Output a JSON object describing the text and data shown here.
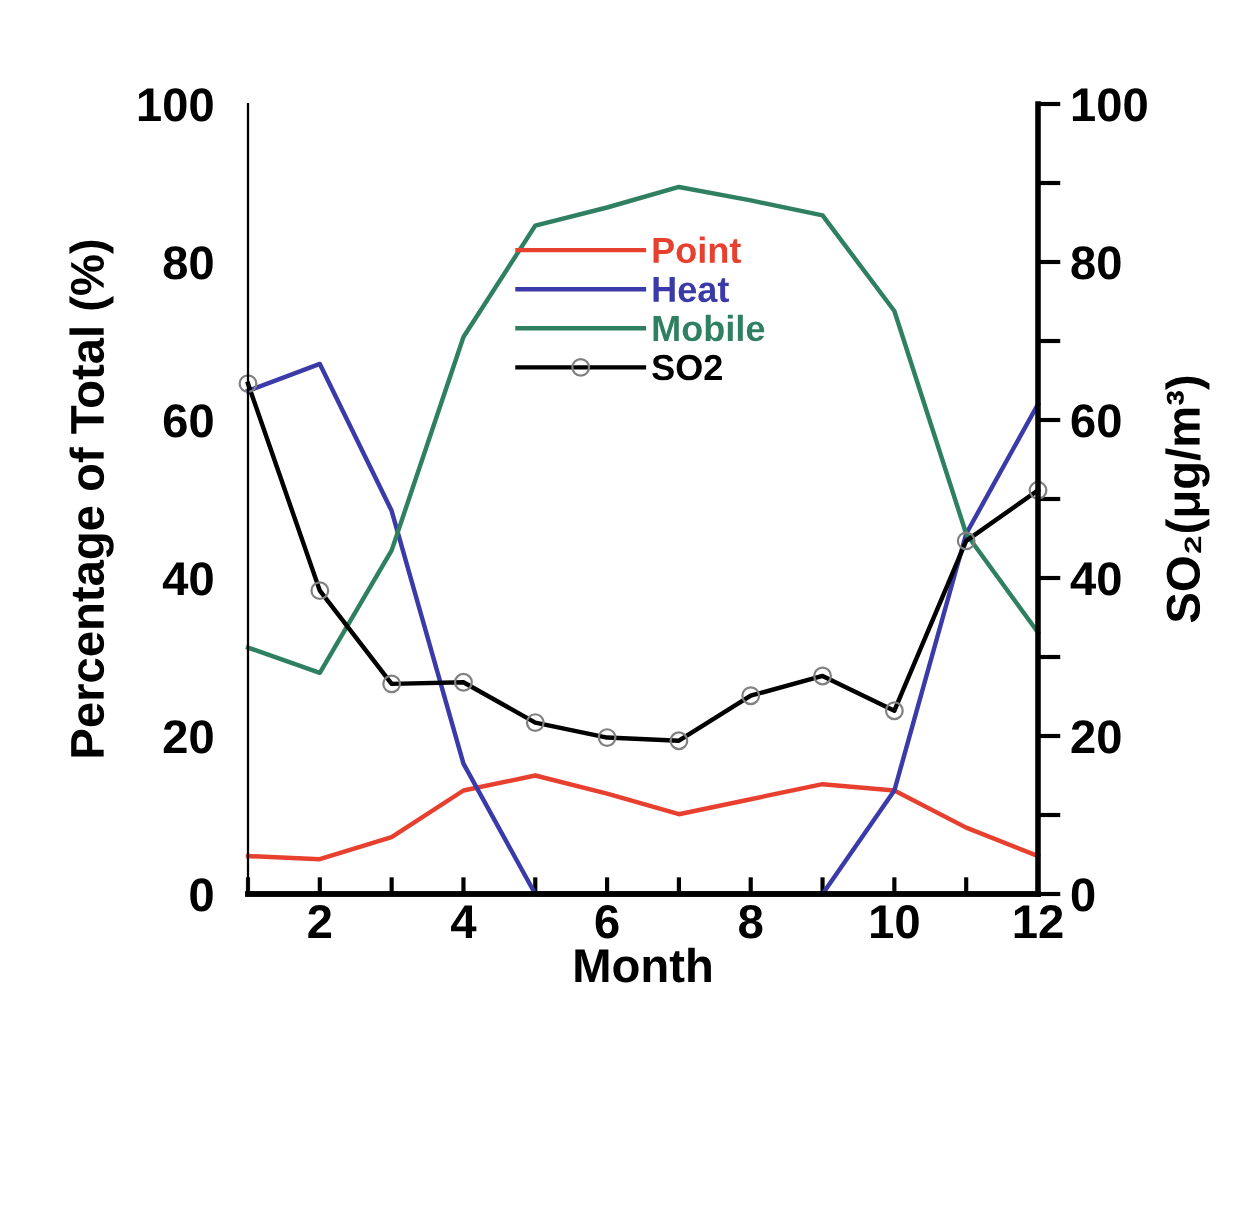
{
  "chart_data": {
    "type": "line",
    "xlabel": "Month",
    "ylabel": "Percentage of Total (%)",
    "y2label": "SO₂(μg/m³)",
    "x": [
      1,
      2,
      3,
      4,
      5,
      6,
      7,
      8,
      9,
      10,
      11,
      12
    ],
    "series": [
      {
        "name": "Point",
        "color": "#e8402f",
        "values": [
          4.8,
          4.4,
          7.2,
          13.1,
          15.0,
          12.7,
          10.1,
          12.0,
          13.9,
          13.1,
          8.4,
          4.8
        ],
        "marker": "none"
      },
      {
        "name": "Heat",
        "color": "#3a3aa8",
        "values": [
          63.7,
          67.1,
          48.5,
          16.5,
          0,
          0,
          0,
          0,
          0,
          13.1,
          45.6,
          62.0
        ],
        "marker": "none"
      },
      {
        "name": "Mobile",
        "color": "#2e8060",
        "values": [
          31.2,
          28.0,
          43.5,
          70.5,
          84.6,
          86.9,
          89.5,
          87.8,
          85.9,
          73.8,
          45.6,
          33.1
        ],
        "marker": "none"
      },
      {
        "name": "SO2",
        "color": "#000000",
        "axis": "y2",
        "marker": "circle",
        "values": [
          64.6,
          38.4,
          26.6,
          26.8,
          21.7,
          19.8,
          19.4,
          25.1,
          27.6,
          23.2,
          44.7,
          51.1
        ]
      }
    ],
    "xlim": [
      1,
      12
    ],
    "xticks": [
      {
        "value": 1,
        "label": null
      },
      2,
      {
        "value": 3,
        "label": null
      },
      4,
      {
        "value": 5,
        "label": null
      },
      6,
      {
        "value": 7,
        "label": null
      },
      8,
      {
        "value": 9,
        "label": null
      },
      10,
      {
        "value": 11,
        "label": null
      },
      12
    ],
    "ylim": [
      0,
      100
    ],
    "yticks": [
      0,
      20,
      40,
      60,
      80,
      100
    ],
    "y2lim": [
      0,
      100
    ],
    "y2ticks": [
      0,
      {
        "value": 10,
        "label": null
      },
      20,
      {
        "value": 30,
        "label": null
      },
      40,
      {
        "value": 50,
        "label": null
      },
      60,
      {
        "value": 70,
        "label": null
      },
      80,
      {
        "value": 90,
        "label": null
      },
      100
    ],
    "legend": "center",
    "grid": false,
    "line_style": "solid"
  }
}
